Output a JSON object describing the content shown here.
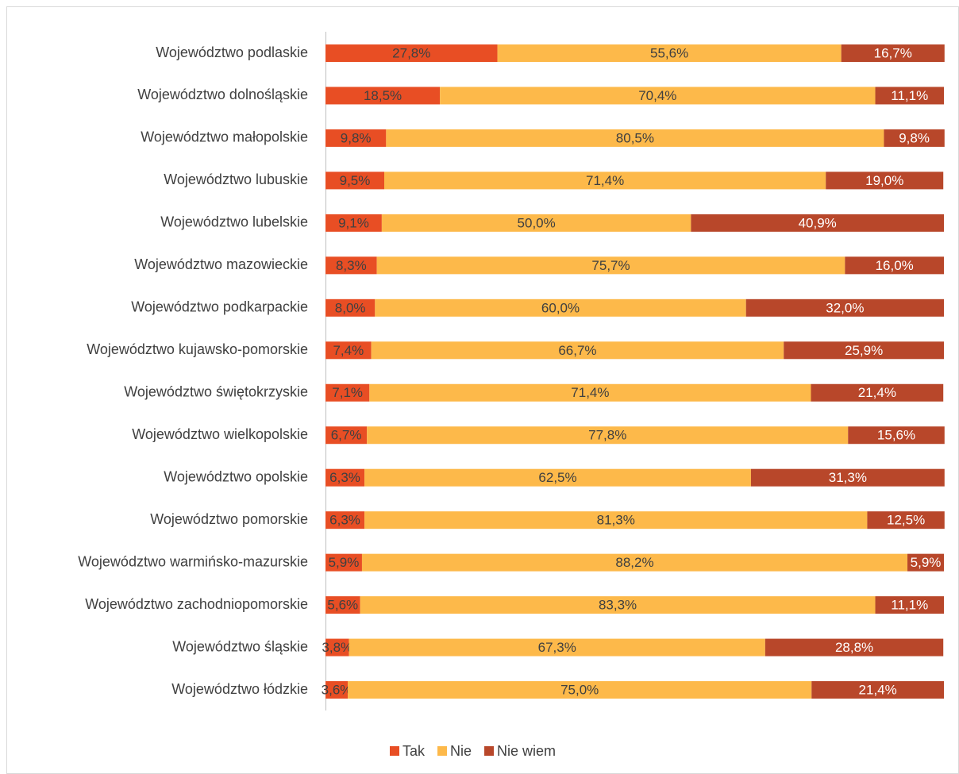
{
  "chart_data": {
    "type": "stacked-barh",
    "categories": [
      "Województwo podlaskie",
      "Województwo dolnośląskie",
      "Województwo małopolskie",
      "Województwo lubuskie",
      "Województwo lubelskie",
      "Województwo mazowieckie",
      "Województwo podkarpackie",
      "Województwo kujawsko-pomorskie",
      "Województwo świętokrzyskie",
      "Województwo wielkopolskie",
      "Województwo opolskie",
      "Województwo pomorskie",
      "Województwo warmińsko-mazurskie",
      "Województwo zachodniopomorskie",
      "Województwo śląskie",
      "Województwo łódzkie"
    ],
    "series": [
      {
        "name": "Tak",
        "color": "#e84e24",
        "values": [
          27.8,
          18.5,
          9.8,
          9.5,
          9.1,
          8.3,
          8.0,
          7.4,
          7.1,
          6.7,
          6.3,
          6.3,
          5.9,
          5.6,
          3.8,
          3.6
        ],
        "value_labels": [
          "27,8%",
          "18,5%",
          "9,8%",
          "9,5%",
          "9,1%",
          "8,3%",
          "8,0%",
          "7,4%",
          "7,1%",
          "6,7%",
          "6,3%",
          "6,3%",
          "5,9%",
          "5,6%",
          "3,8%",
          "3,6%"
        ]
      },
      {
        "name": "Nie",
        "color": "#fdb94a",
        "values": [
          55.6,
          70.4,
          80.5,
          71.4,
          50.0,
          75.7,
          60.0,
          66.7,
          71.4,
          77.8,
          62.5,
          81.3,
          88.2,
          83.3,
          67.3,
          75.0
        ],
        "value_labels": [
          "55,6%",
          "70,4%",
          "80,5%",
          "71,4%",
          "50,0%",
          "75,7%",
          "60,0%",
          "66,7%",
          "71,4%",
          "77,8%",
          "62,5%",
          "81,3%",
          "88,2%",
          "83,3%",
          "67,3%",
          "75,0%"
        ]
      },
      {
        "name": "Nie wiem",
        "color": "#b8472a",
        "values": [
          16.7,
          11.1,
          9.8,
          19.0,
          40.9,
          16.0,
          32.0,
          25.9,
          21.4,
          15.6,
          31.3,
          12.5,
          5.9,
          11.1,
          28.8,
          21.4
        ],
        "value_labels": [
          "16,7%",
          "11,1%",
          "9,8%",
          "19,0%",
          "40,9%",
          "16,0%",
          "32,0%",
          "25,9%",
          "21,4%",
          "15,6%",
          "31,3%",
          "12,5%",
          "5,9%",
          "11,1%",
          "28,8%",
          "21,4%"
        ]
      }
    ],
    "xlim": [
      0,
      100
    ],
    "legend": "bottom"
  }
}
